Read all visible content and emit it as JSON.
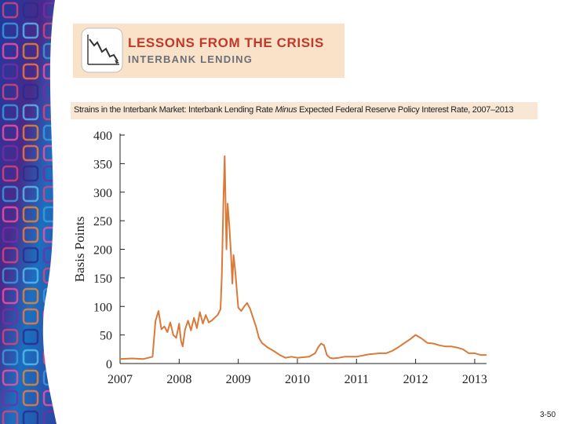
{
  "banner": {
    "title": "LESSONS FROM THE CRISIS",
    "subtitle": "INTERBANK LENDING"
  },
  "chart_title": {
    "prefix": "Strains in the Interbank Market: Interbank Lending Rate ",
    "emphasis": "Minus",
    "suffix": " Expected Federal Reserve Policy Interest Rate, 2007–2013"
  },
  "footer": {
    "slide_number": "3-50"
  },
  "colors": {
    "line": "#d97a3a",
    "banner_bg": "#f9e2c8",
    "banner_title": "#c0392b",
    "title_bar": "#f7e7d4"
  },
  "chart_data": {
    "type": "line",
    "title": "Strains in the Interbank Market: Interbank Lending Rate Minus Expected Federal Reserve Policy Interest Rate, 2007–2013",
    "xlabel": "",
    "ylabel": "Basis Points",
    "xlim": [
      2007,
      2013.2
    ],
    "ylim": [
      0,
      400
    ],
    "xticks": [
      2007,
      2008,
      2009,
      2010,
      2011,
      2012,
      2013
    ],
    "yticks": [
      0,
      50,
      100,
      150,
      200,
      250,
      300,
      350,
      400
    ],
    "series": [
      {
        "name": "Interbank lending rate minus expected policy rate",
        "x": [
          2007.0,
          2007.2,
          2007.4,
          2007.55,
          2007.6,
          2007.65,
          2007.7,
          2007.75,
          2007.8,
          2007.85,
          2007.9,
          2007.95,
          2008.0,
          2008.03,
          2008.06,
          2008.1,
          2008.15,
          2008.2,
          2008.25,
          2008.3,
          2008.35,
          2008.4,
          2008.45,
          2008.5,
          2008.55,
          2008.6,
          2008.65,
          2008.7,
          2008.72,
          2008.75,
          2008.77,
          2008.8,
          2008.82,
          2008.85,
          2008.88,
          2008.9,
          2008.92,
          2008.95,
          2009.0,
          2009.05,
          2009.1,
          2009.15,
          2009.2,
          2009.25,
          2009.3,
          2009.35,
          2009.4,
          2009.45,
          2009.5,
          2009.6,
          2009.7,
          2009.8,
          2009.9,
          2010.0,
          2010.2,
          2010.3,
          2010.35,
          2010.4,
          2010.45,
          2010.5,
          2010.55,
          2010.6,
          2010.7,
          2010.8,
          2011.0,
          2011.2,
          2011.4,
          2011.5,
          2011.6,
          2011.7,
          2011.8,
          2011.9,
          2012.0,
          2012.1,
          2012.2,
          2012.3,
          2012.4,
          2012.5,
          2012.6,
          2012.7,
          2012.8,
          2012.9,
          2013.0,
          2013.1,
          2013.2
        ],
        "values": [
          8,
          9,
          8,
          12,
          75,
          92,
          60,
          65,
          55,
          72,
          50,
          45,
          70,
          40,
          30,
          60,
          75,
          58,
          80,
          62,
          90,
          70,
          85,
          72,
          75,
          80,
          85,
          95,
          150,
          290,
          363,
          200,
          280,
          240,
          185,
          140,
          190,
          160,
          98,
          92,
          100,
          106,
          96,
          80,
          65,
          45,
          36,
          32,
          28,
          22,
          15,
          10,
          12,
          10,
          12,
          18,
          28,
          35,
          32,
          15,
          10,
          9,
          10,
          12,
          12,
          16,
          18,
          18,
          22,
          28,
          35,
          42,
          50,
          44,
          36,
          35,
          32,
          30,
          30,
          28,
          25,
          18,
          18,
          15,
          15
        ]
      }
    ]
  }
}
